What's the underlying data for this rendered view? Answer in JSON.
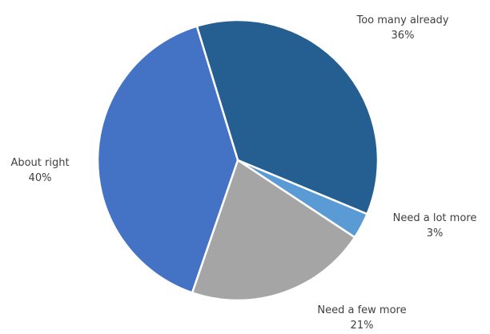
{
  "chart_data": {
    "type": "pie",
    "title": "",
    "start_angle_deg": -17,
    "direction": "clockwise",
    "slices": [
      {
        "label": "Too many already",
        "value": 36,
        "value_label": "36%",
        "color": "#255e91"
      },
      {
        "label": "Need a lot more",
        "value": 3,
        "value_label": "3%",
        "color": "#5b9bd5"
      },
      {
        "label": "Need a few more",
        "value": 21,
        "value_label": "21%",
        "color": "#a5a5a5"
      },
      {
        "label": "About right",
        "value": 40,
        "value_label": "40%",
        "color": "#4472c4"
      }
    ]
  }
}
